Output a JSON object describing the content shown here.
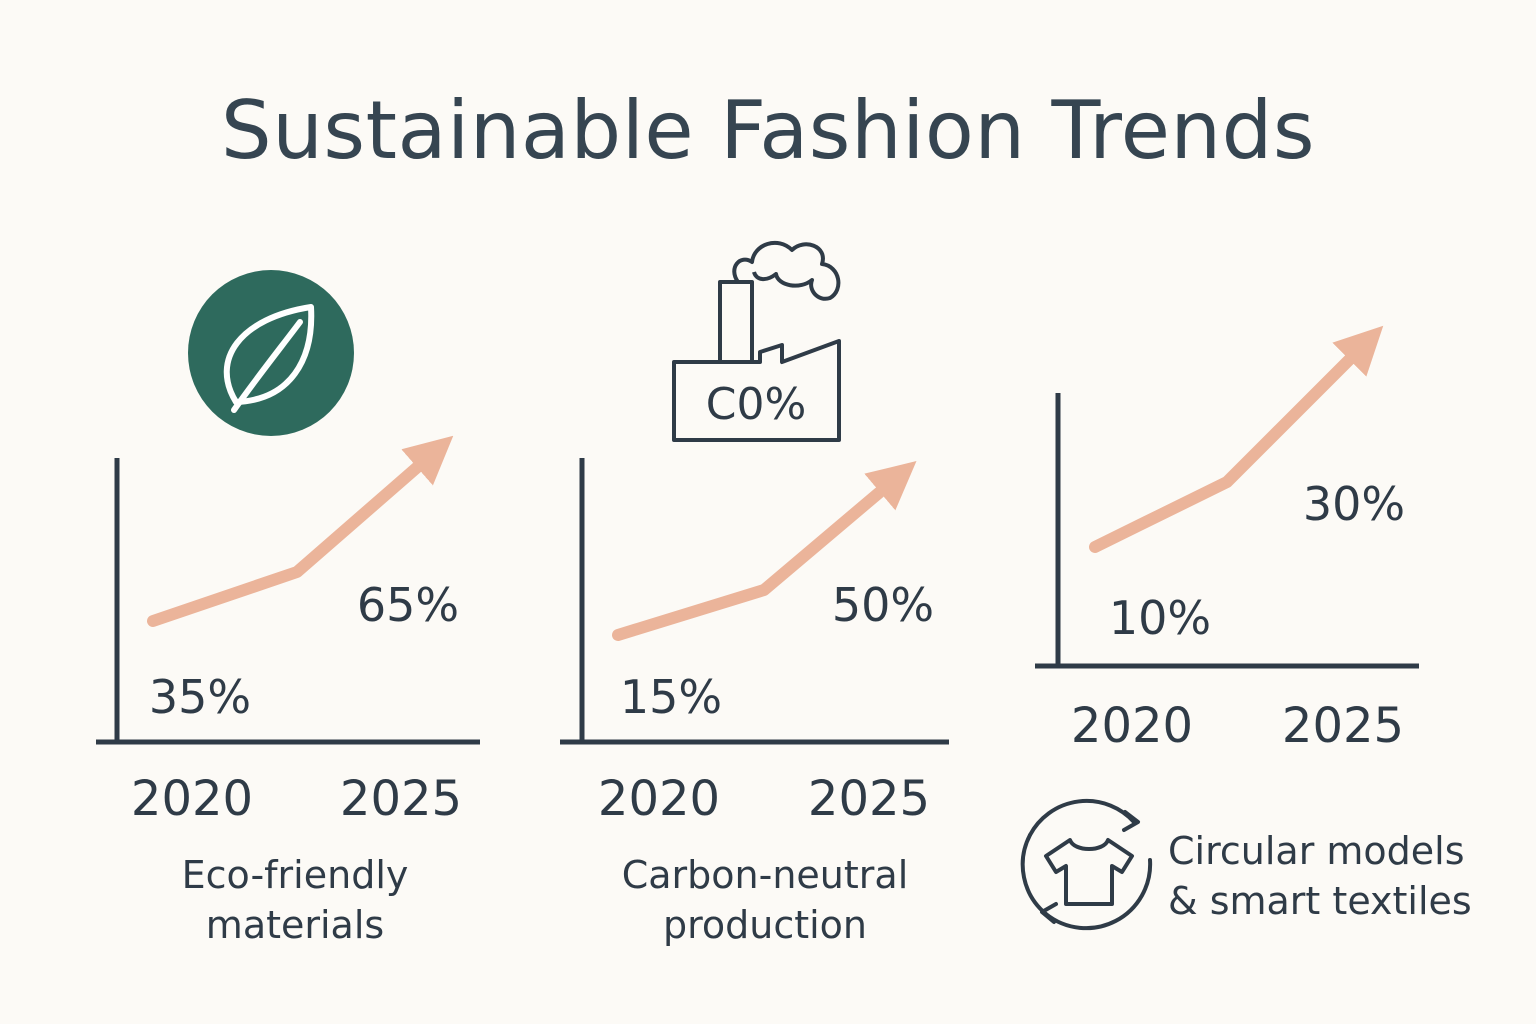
{
  "title": "Sustainable Fashion Trends",
  "colors": {
    "accent": "#ebb49a",
    "axis": "#2f3b47",
    "leaf_badge": "#2e6a5d",
    "background": "#fcfaf6"
  },
  "icons": {
    "leaf": "leaf-icon",
    "factory": "factory-icon",
    "circular": "recycle-shirt-icon"
  },
  "factory_label": "C0%",
  "chart_data": [
    {
      "type": "line",
      "title": "Eco-friendly materials",
      "caption_lines": [
        "Eco-friendly",
        "materials"
      ],
      "categories": [
        "2020",
        "2025"
      ],
      "values": [
        35,
        65
      ],
      "value_labels": [
        "35%",
        "65%"
      ],
      "ylim": [
        0,
        100
      ]
    },
    {
      "type": "line",
      "title": "Carbon-neutral production",
      "caption_lines": [
        "Carbon-neutral",
        "production"
      ],
      "categories": [
        "2020",
        "2025"
      ],
      "values": [
        15,
        50
      ],
      "value_labels": [
        "15%",
        "50%"
      ],
      "ylim": [
        0,
        100
      ]
    },
    {
      "type": "line",
      "title": "Circular models & smart textiles",
      "caption_lines": [
        "Circular models",
        "& smart textiles"
      ],
      "categories": [
        "2020",
        "2025"
      ],
      "values": [
        10,
        30
      ],
      "value_labels": [
        "10%",
        "30%"
      ],
      "ylim": [
        0,
        100
      ]
    }
  ]
}
